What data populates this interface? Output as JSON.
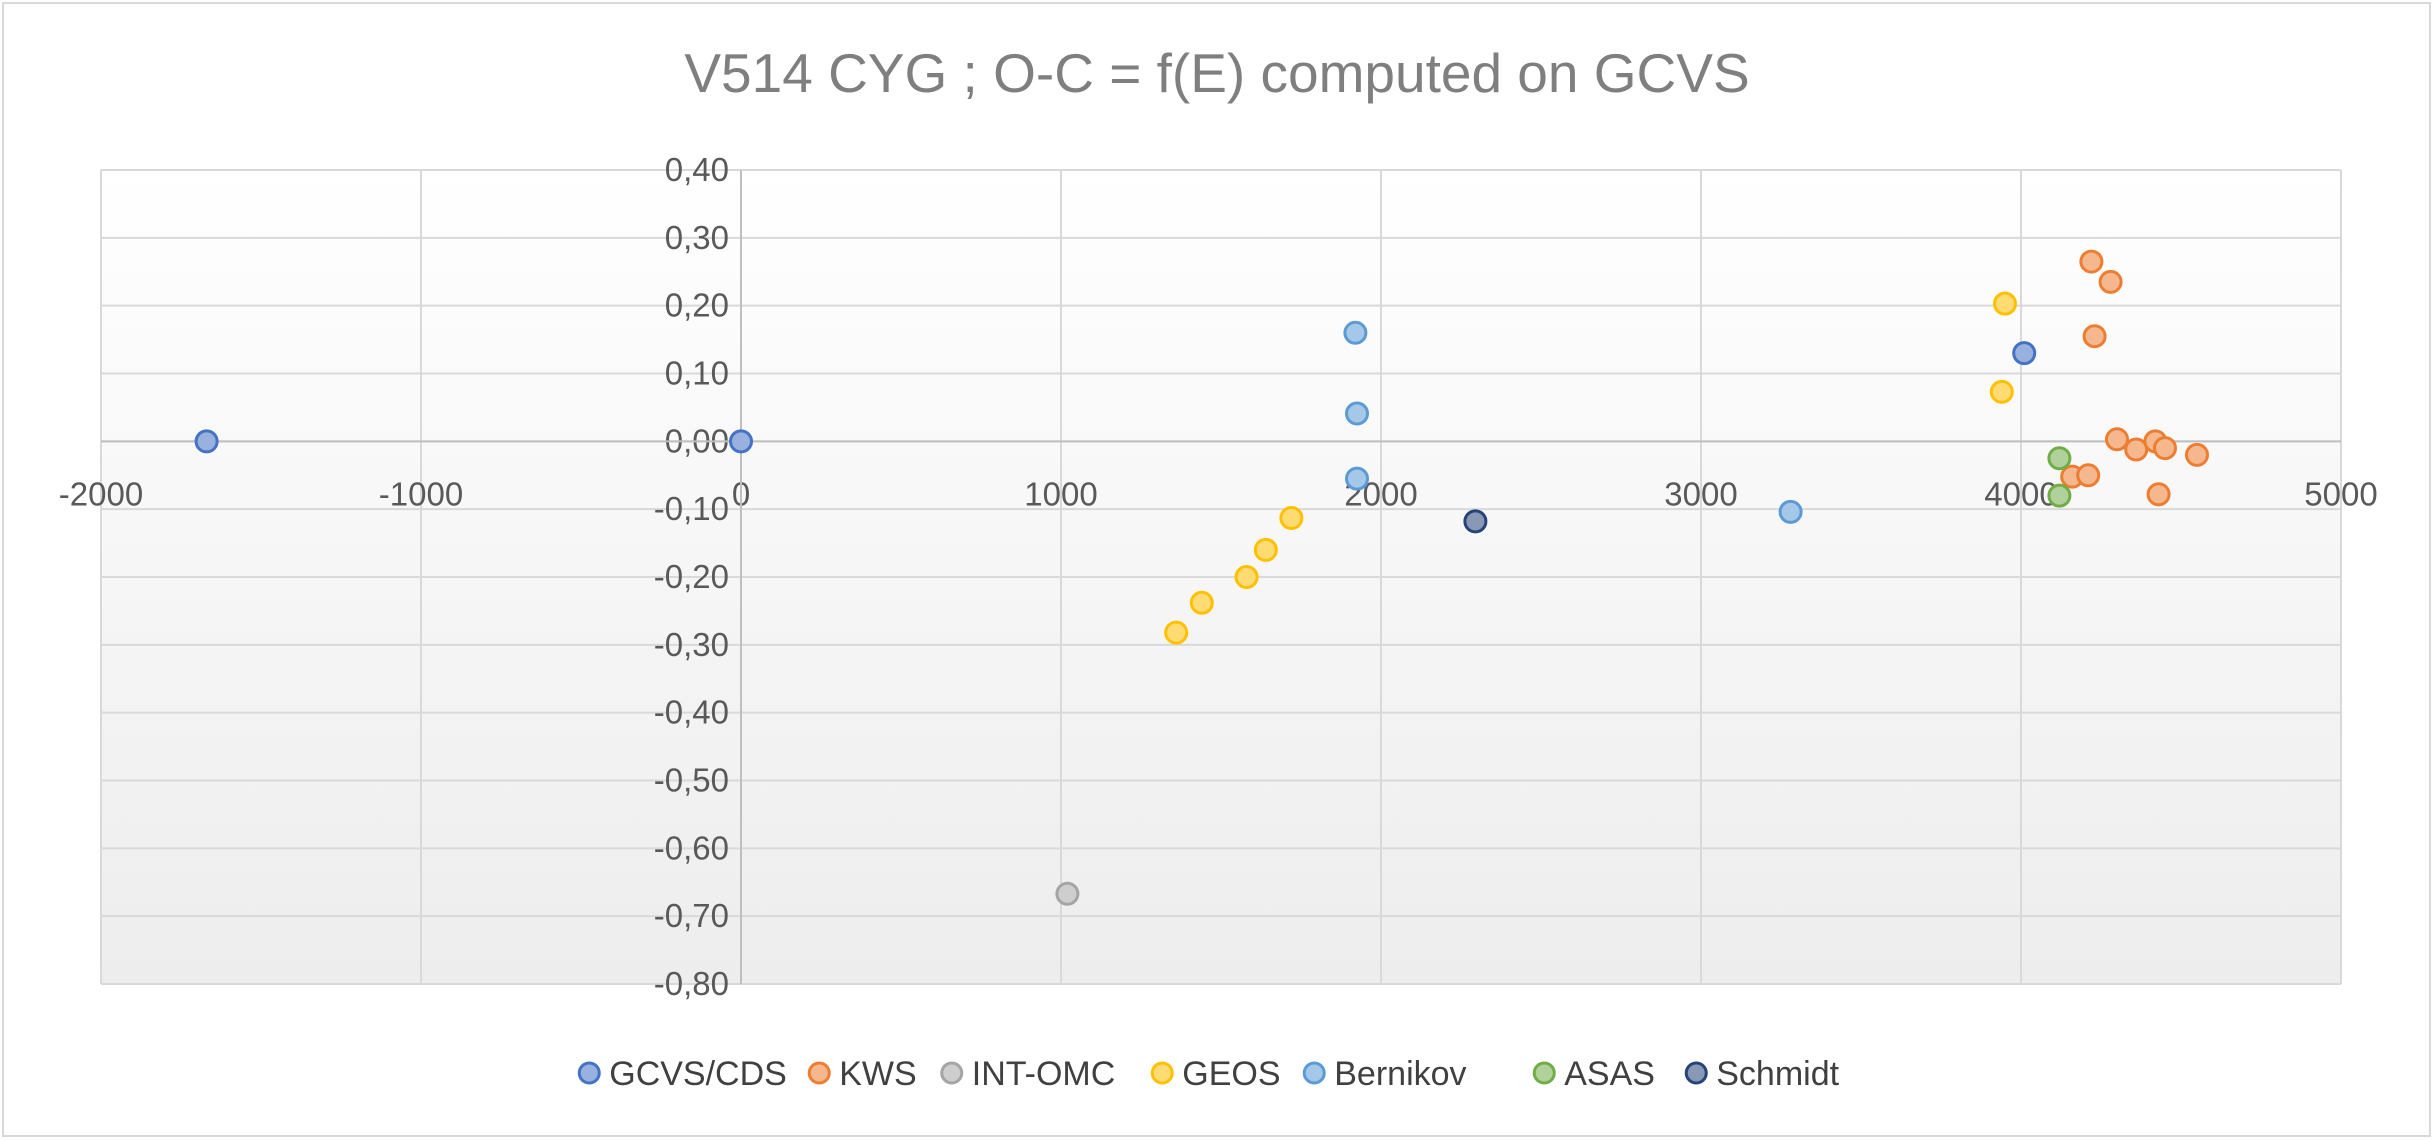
{
  "chart_data": {
    "type": "scatter",
    "title": "V514 CYG ; O-C = f(E) computed on GCVS",
    "xlabel": "",
    "ylabel": "",
    "xlim": [
      -2000,
      5000
    ],
    "ylim": [
      -0.8,
      0.4
    ],
    "x_ticks": [
      "-2000",
      "-1000",
      "0",
      "1000",
      "2000",
      "3000",
      "4000",
      "5000"
    ],
    "y_ticks": [
      "0,40",
      "0,30",
      "0,20",
      "0,10",
      "0,00",
      "-0,10",
      "-0,20",
      "-0,30",
      "-0,40",
      "-0,50",
      "-0,60",
      "-0,70",
      "-0,80"
    ],
    "grid": true,
    "legend_position": "bottom",
    "series": [
      {
        "name": "GCVS/CDS",
        "color": "#4472c4",
        "points": [
          [
            -1670,
            0.0
          ],
          [
            0,
            0.0
          ],
          [
            4010,
            0.13
          ]
        ]
      },
      {
        "name": "KWS",
        "color": "#ed7d31",
        "points": [
          [
            4220,
            0.265
          ],
          [
            4280,
            0.235
          ],
          [
            4230,
            0.155
          ],
          [
            4300,
            0.003
          ],
          [
            4360,
            -0.012
          ],
          [
            4420,
            0.0
          ],
          [
            4450,
            -0.01
          ],
          [
            4550,
            -0.02
          ],
          [
            4160,
            -0.052
          ],
          [
            4210,
            -0.05
          ],
          [
            4430,
            -0.078
          ]
        ]
      },
      {
        "name": "INT-OMC",
        "color": "#a5a5a5",
        "points": [
          [
            1020,
            -0.667
          ]
        ]
      },
      {
        "name": "GEOS",
        "color": "#ffc000",
        "points": [
          [
            3950,
            0.203
          ],
          [
            3940,
            0.073
          ],
          [
            1720,
            -0.113
          ],
          [
            1640,
            -0.16
          ],
          [
            1580,
            -0.2
          ],
          [
            1440,
            -0.238
          ],
          [
            1360,
            -0.282
          ]
        ]
      },
      {
        "name": "Bernikov",
        "color": "#5b9bd5",
        "points": [
          [
            1920,
            0.16
          ],
          [
            1925,
            0.041
          ],
          [
            1925,
            -0.055
          ],
          [
            3280,
            -0.104
          ]
        ]
      },
      {
        "name": "ASAS",
        "color": "#70ad47",
        "points": [
          [
            4120,
            -0.025
          ],
          [
            4120,
            -0.08
          ]
        ]
      },
      {
        "name": "Schmidt",
        "color": "#264478",
        "points": [
          [
            2295,
            -0.118
          ]
        ]
      }
    ]
  }
}
